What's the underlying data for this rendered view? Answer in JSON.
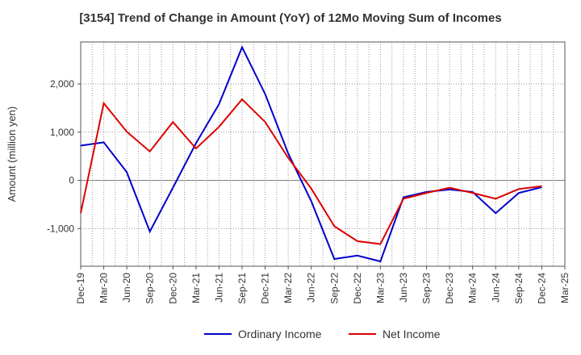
{
  "chart_data": {
    "type": "line",
    "title": "[3154]  Trend of Change in Amount (YoY) of 12Mo Moving Sum of Incomes",
    "ylabel": "Amount (million yen)",
    "xlabel": "",
    "ylim": [
      -1780,
      2870
    ],
    "yticks": [
      -1000,
      0,
      1000,
      2000
    ],
    "ytick_labels": [
      "-1,000",
      "0",
      "1,000",
      "2,000"
    ],
    "grid": true,
    "legend_position": "bottom-center",
    "categories": [
      "Dec-19",
      "Mar-20",
      "Jun-20",
      "Sep-20",
      "Dec-20",
      "Mar-21",
      "Jun-21",
      "Sep-21",
      "Dec-21",
      "Mar-22",
      "Jun-22",
      "Sep-22",
      "Dec-22",
      "Mar-23",
      "Jun-23",
      "Sep-23",
      "Dec-23",
      "Mar-24",
      "Jun-24",
      "Sep-24",
      "Dec-24",
      "Mar-25"
    ],
    "series": [
      {
        "name": "Ordinary Income",
        "color": "#0000cc",
        "values": [
          720,
          790,
          170,
          -1060,
          -150,
          770,
          1580,
          2760,
          1790,
          560,
          -430,
          -1630,
          -1560,
          -1680,
          -350,
          -240,
          -190,
          -240,
          -680,
          -260,
          -140,
          null
        ]
      },
      {
        "name": "Net Income",
        "color": "#dd0000",
        "values": [
          -680,
          1600,
          1010,
          600,
          1210,
          660,
          1110,
          1680,
          1210,
          470,
          -170,
          -950,
          -1260,
          -1320,
          -380,
          -260,
          -150,
          -260,
          -380,
          -180,
          -120,
          null
        ]
      }
    ]
  }
}
